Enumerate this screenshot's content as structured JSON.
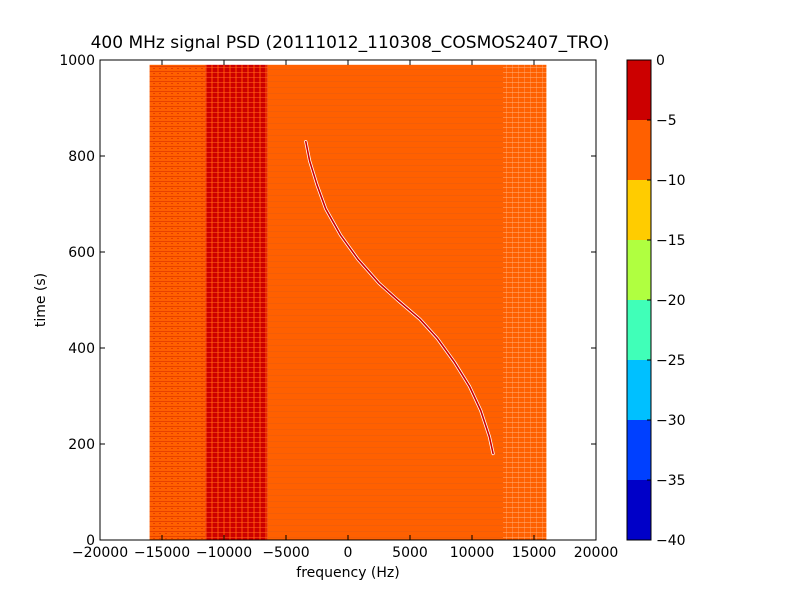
{
  "chart_data": {
    "type": "heatmap",
    "title": "400 MHz signal PSD (20111012_110308_COSMOS2407_TRO)",
    "xlabel": "frequency (Hz)",
    "ylabel": "time (s)",
    "xlim": [
      -20000,
      20000
    ],
    "ylim": [
      0,
      1000
    ],
    "x_ticks": [
      -20000,
      -15000,
      -10000,
      -5000,
      0,
      5000,
      10000,
      15000,
      20000
    ],
    "x_tick_labels": [
      "−20000",
      "−15000",
      "−10000",
      "−5000",
      "0",
      "5000",
      "10000",
      "15000",
      "20000"
    ],
    "y_ticks": [
      0,
      200,
      400,
      600,
      800,
      1000
    ],
    "y_tick_labels": [
      "0",
      "200",
      "400",
      "600",
      "800",
      "1000"
    ],
    "data_extent": {
      "freq": [
        -16000,
        16000
      ],
      "time": [
        0,
        990
      ]
    },
    "colorbar": {
      "levels": [
        -40,
        -35,
        -30,
        -25,
        -20,
        -15,
        -10,
        -5,
        0
      ],
      "tick_labels": [
        "−40",
        "−35",
        "−30",
        "−25",
        "−20",
        "−15",
        "−10",
        "−5",
        "0"
      ],
      "colors": [
        "#0000c8",
        "#0040ff",
        "#00c0ff",
        "#40ffb8",
        "#b0ff40",
        "#ffcc00",
        "#ff6000",
        "#cc0000"
      ]
    },
    "bands": [
      {
        "freq": [
          -16000,
          -11500
        ],
        "level": [
          -10,
          -5
        ]
      },
      {
        "freq": [
          -11500,
          -6500
        ],
        "level": [
          -5,
          0
        ]
      },
      {
        "freq": [
          -6500,
          -5000
        ],
        "level": [
          -10,
          -5
        ]
      },
      {
        "freq": [
          -5000,
          12500
        ],
        "level": [
          -10,
          -5
        ]
      },
      {
        "freq": [
          12500,
          16000
        ],
        "level": [
          -10,
          -5
        ]
      }
    ],
    "doppler_trace": {
      "level": [
        -5,
        0
      ],
      "points": [
        [
          -3400,
          830
        ],
        [
          -3100,
          790
        ],
        [
          -2500,
          740
        ],
        [
          -1800,
          690
        ],
        [
          -600,
          635
        ],
        [
          800,
          585
        ],
        [
          2500,
          535
        ],
        [
          4000,
          500
        ],
        [
          5800,
          460
        ],
        [
          7200,
          420
        ],
        [
          8600,
          370
        ],
        [
          9800,
          320
        ],
        [
          10700,
          270
        ],
        [
          11400,
          215
        ],
        [
          11700,
          180
        ]
      ]
    }
  }
}
